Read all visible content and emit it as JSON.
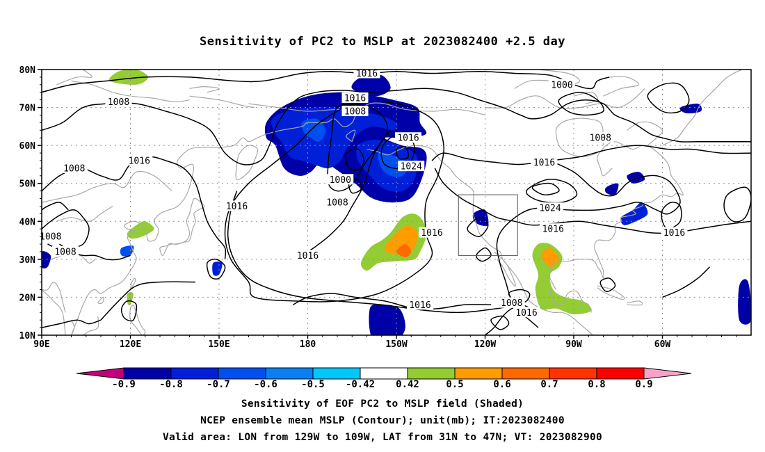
{
  "title": "Sensitivity of PC2 to MSLP at 2023082400 +2.5 day",
  "map": {
    "lat_labels": [
      "80N",
      "70N",
      "60N",
      "50N",
      "40N",
      "30N",
      "20N",
      "10N"
    ],
    "lon_labels": [
      "90E",
      "120E",
      "150E",
      "180",
      "150W",
      "120W",
      "90W",
      "60W"
    ],
    "valid_box": {
      "lon_from": "129W",
      "lon_to": "109W",
      "lat_from": "31N",
      "lat_to": "47N"
    },
    "contour_labels": [
      {
        "text": "1016",
        "lon": 200,
        "lat": 79
      },
      {
        "text": "1016",
        "lon": 196,
        "lat": 72.5
      },
      {
        "text": "1008",
        "lon": 196,
        "lat": 69
      },
      {
        "text": "1016",
        "lon": 214,
        "lat": 62
      },
      {
        "text": "1024",
        "lon": 215,
        "lat": 54.5
      },
      {
        "text": "1000",
        "lon": 191,
        "lat": 51
      },
      {
        "text": "1008",
        "lon": 190,
        "lat": 45
      },
      {
        "text": "1016",
        "lon": 222,
        "lat": 37
      },
      {
        "text": "1016",
        "lon": 180,
        "lat": 31
      },
      {
        "text": "1016",
        "lon": 218,
        "lat": 18
      },
      {
        "text": "1008",
        "lon": 249,
        "lat": 18.5
      },
      {
        "text": "1016",
        "lon": 254,
        "lat": 16
      },
      {
        "text": "1000",
        "lon": 266,
        "lat": 76
      },
      {
        "text": "1008",
        "lon": 279,
        "lat": 62
      },
      {
        "text": "1016",
        "lon": 260,
        "lat": 55.5
      },
      {
        "text": "1024",
        "lon": 262,
        "lat": 43.5
      },
      {
        "text": "1016",
        "lon": 263,
        "lat": 38
      },
      {
        "text": "1016",
        "lon": 304,
        "lat": 37
      },
      {
        "text": "1008",
        "lon": 116,
        "lat": 71.5
      },
      {
        "text": "1008",
        "lon": 101,
        "lat": 54
      },
      {
        "text": "1016",
        "lon": 123,
        "lat": 56
      },
      {
        "text": "1016",
        "lon": 156,
        "lat": 44
      },
      {
        "text": "1008",
        "lon": 93,
        "lat": 36
      },
      {
        "text": "1008",
        "lon": 98,
        "lat": 32
      }
    ]
  },
  "colorbar": {
    "labels": [
      "-0.9",
      "-0.8",
      "-0.7",
      "-0.6",
      "-0.5",
      "-0.42",
      "0.42",
      "0.5",
      "0.6",
      "0.7",
      "0.8",
      "0.9"
    ],
    "colors": [
      "#c2007a",
      "#0000a8",
      "#0020d8",
      "#0050f0",
      "#0a80f0",
      "#00c8f8",
      "#ffffff",
      "#94cc34",
      "#ff9c00",
      "#ff6a00",
      "#ff3400",
      "#ff0000",
      "#f7a3c8"
    ]
  },
  "captions": [
    "Sensitivity of EOF PC2 to MSLP field (Shaded)",
    "NCEP ensemble mean MSLP (Contour); unit(mb); IT:2023082400",
    "Valid area: LON from 129W to 109W, LAT from 31N to 47N; VT: 2023082900"
  ]
}
